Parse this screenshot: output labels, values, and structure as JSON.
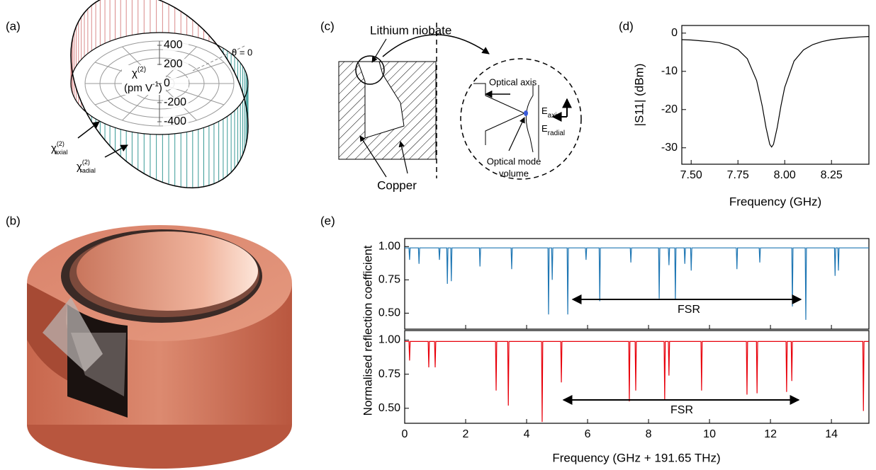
{
  "panel_a": {
    "label": "(a)",
    "theta_label": "θ = 0",
    "ticks": [
      400,
      200,
      0,
      -200,
      -400
    ],
    "axis_label": {
      "symbol": "χ",
      "sup": "(2)",
      "unit": "(pm V",
      "unit_sup": "-1",
      "unit_end": ")"
    },
    "axial_label": {
      "symbol": "χ",
      "sup": "(2)",
      "sub": "axial"
    },
    "radial_label": {
      "symbol": "χ",
      "sup": "(2)",
      "sub": "radial"
    }
  },
  "panel_b": {
    "label": "(b)"
  },
  "panel_c": {
    "label": "(c)",
    "lithium_niobate": "Lithium niobate",
    "optical_axis": "Optical axis",
    "e_axial": {
      "symbol": "E",
      "sub": "axial"
    },
    "e_radial": {
      "symbol": "E",
      "sub": "radial"
    },
    "mode_volume": [
      "Optical mode",
      "volume"
    ],
    "copper": "Copper"
  },
  "chart_data": [
    {
      "type": "line",
      "label": "(d)",
      "xlabel": "Frequency (GHz)",
      "ylabel": "|S11| (dBm)",
      "color": "#000000",
      "xlim": [
        7.45,
        8.45
      ],
      "ylim": [
        -34.3,
        2
      ],
      "xticks": [
        {
          "value": 7.5,
          "label": "7.50"
        },
        {
          "value": 7.75,
          "label": "7.75"
        },
        {
          "value": 8.0,
          "label": "8.00"
        },
        {
          "value": 8.25,
          "label": "8.25"
        }
      ],
      "yticks": [
        0,
        -10,
        -20,
        -30
      ],
      "x": [
        7.45,
        7.5,
        7.55,
        7.6,
        7.65,
        7.7,
        7.75,
        7.8,
        7.85,
        7.88,
        7.9,
        7.92,
        7.93,
        7.94,
        7.96,
        7.98,
        8.0,
        8.05,
        8.1,
        8.15,
        8.2,
        8.25,
        8.3,
        8.35,
        8.4,
        8.45
      ],
      "values": [
        -1.7,
        -1.8,
        -2.0,
        -2.2,
        -2.5,
        -3.2,
        -4.3,
        -6.7,
        -12.4,
        -19.1,
        -24.7,
        -29.1,
        -29.8,
        -29.1,
        -24.7,
        -19.0,
        -14.2,
        -7.3,
        -4.4,
        -3.0,
        -2.2,
        -1.7,
        -1.4,
        -1.2,
        -1.0,
        -0.9
      ]
    },
    {
      "type": "line",
      "label": "(e)",
      "ylabel": "Normalised reflection coefficient",
      "annotation": "FSR",
      "color": "#1f77b4",
      "xlim": [
        0,
        15.23
      ],
      "ylim": [
        0.38,
        1.06
      ],
      "yticks": [
        {
          "value": 1.0,
          "label": "1.00"
        },
        {
          "value": 0.75,
          "label": "0.75"
        },
        {
          "value": 0.5,
          "label": "0.50"
        }
      ],
      "x": [
        0,
        0.14,
        0.16,
        0.18,
        0.45,
        0.47,
        0.49,
        1.12,
        1.14,
        1.16,
        1.38,
        1.4,
        1.42,
        1.51,
        1.53,
        1.55,
        2.45,
        2.47,
        2.49,
        3.49,
        3.51,
        3.53,
        4.7,
        4.72,
        4.74,
        4.82,
        4.84,
        4.86,
        5.33,
        5.35,
        5.37,
        5.93,
        5.95,
        5.97,
        6.38,
        6.4,
        6.42,
        7.4,
        7.42,
        7.44,
        8.33,
        8.35,
        8.37,
        8.65,
        8.67,
        8.69,
        8.86,
        8.88,
        8.9,
        9.17,
        9.19,
        9.21,
        9.38,
        9.4,
        9.42,
        10.88,
        10.9,
        10.92,
        11.63,
        11.65,
        11.67,
        12.7,
        12.72,
        12.74,
        13.14,
        13.16,
        13.18,
        14.1,
        14.12,
        14.14,
        14.21,
        14.23,
        14.25,
        15.23
      ],
      "values": [
        0.99,
        0.99,
        0.9,
        0.99,
        0.99,
        0.87,
        0.99,
        0.99,
        0.9,
        0.99,
        0.99,
        0.72,
        0.99,
        0.99,
        0.74,
        0.99,
        0.99,
        0.85,
        0.99,
        0.99,
        0.83,
        0.99,
        0.99,
        0.49,
        0.99,
        0.99,
        0.75,
        0.99,
        0.99,
        0.49,
        0.99,
        0.99,
        0.9,
        0.99,
        0.99,
        0.59,
        0.99,
        0.99,
        0.88,
        0.99,
        0.99,
        0.61,
        0.99,
        0.99,
        0.86,
        0.99,
        0.99,
        0.6,
        0.99,
        0.99,
        0.87,
        0.99,
        0.99,
        0.82,
        0.99,
        0.99,
        0.83,
        0.99,
        0.99,
        0.88,
        0.99,
        0.99,
        0.55,
        0.99,
        0.99,
        0.45,
        0.99,
        0.99,
        0.78,
        0.99,
        0.99,
        0.82,
        0.99,
        0.99
      ]
    },
    {
      "type": "line",
      "xlabel": "Frequency (GHz + 191.65 THz)",
      "annotation": "FSR",
      "color": "#e8000b",
      "xlim": [
        0,
        15.23
      ],
      "ylim": [
        0.39,
        1.07
      ],
      "xticks": [
        0,
        2,
        4,
        6,
        8,
        10,
        12,
        14
      ],
      "yticks": [
        {
          "value": 1.0,
          "label": "1.00"
        },
        {
          "value": 0.75,
          "label": "0.75"
        },
        {
          "value": 0.5,
          "label": "0.50"
        }
      ],
      "x": [
        0,
        0.14,
        0.16,
        0.18,
        0.77,
        0.79,
        0.81,
        0.98,
        1.0,
        1.02,
        2.98,
        3.0,
        3.02,
        3.38,
        3.4,
        3.42,
        4.49,
        4.51,
        4.53,
        5.12,
        5.14,
        5.16,
        7.35,
        7.37,
        7.39,
        7.56,
        7.58,
        7.6,
        8.51,
        8.53,
        8.55,
        8.65,
        8.67,
        8.69,
        9.72,
        9.74,
        9.76,
        11.21,
        11.23,
        11.25,
        11.54,
        11.56,
        11.58,
        12.51,
        12.53,
        12.55,
        12.68,
        12.7,
        12.72,
        15.03,
        15.05,
        15.07,
        15.23
      ],
      "values": [
        0.99,
        0.99,
        0.85,
        0.99,
        0.99,
        0.8,
        0.99,
        0.99,
        0.8,
        0.99,
        0.99,
        0.63,
        0.99,
        0.99,
        0.52,
        0.99,
        0.99,
        0.4,
        0.99,
        0.99,
        0.69,
        0.99,
        0.99,
        0.55,
        0.99,
        0.99,
        0.63,
        0.99,
        0.99,
        0.56,
        0.99,
        0.99,
        0.74,
        0.99,
        0.99,
        0.63,
        0.99,
        0.99,
        0.6,
        0.99,
        0.99,
        0.61,
        0.99,
        0.99,
        0.62,
        0.99,
        0.99,
        0.7,
        0.99,
        0.99,
        0.48,
        0.99,
        0.99
      ]
    }
  ]
}
